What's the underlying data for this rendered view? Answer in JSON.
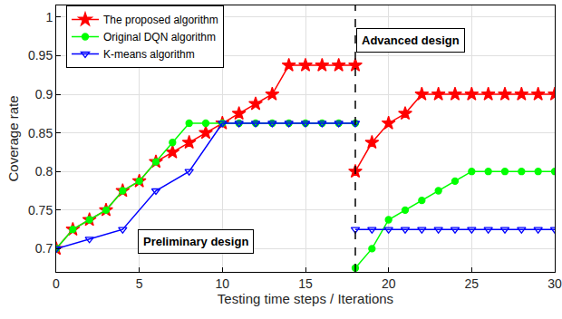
{
  "chart_data": {
    "type": "line",
    "x_label": "Testing time steps / Iterations",
    "y_label": "Coverage rate",
    "xlim": [
      0,
      30
    ],
    "xticks": [
      0,
      5,
      10,
      15,
      20,
      25,
      30
    ],
    "ylim": [
      0.67,
      1.015
    ],
    "yticks": [
      0.7,
      0.75,
      0.8,
      0.85,
      0.9,
      0.95,
      1
    ],
    "grid": true,
    "legend": "top-left",
    "annotations": [
      "Preliminary design",
      "Advanced design"
    ],
    "vertical_line": {
      "x": 18,
      "line_style": "dashed"
    },
    "series": [
      {
        "name": "The proposed algorithm",
        "color": "#ff0000",
        "marker": "star",
        "x": [
          0,
          1,
          2,
          3,
          4,
          5,
          6,
          7,
          8,
          9,
          10,
          11,
          12,
          13,
          14,
          15,
          16,
          17,
          18,
          18,
          18,
          19,
          20,
          21,
          22,
          23,
          24,
          25,
          26,
          27,
          28,
          29,
          30
        ],
        "values": [
          0.7,
          0.725,
          0.7375,
          0.75,
          0.775,
          0.7875,
          0.8125,
          0.825,
          0.8375,
          0.85,
          0.8625,
          0.875,
          0.8875,
          0.9,
          0.9375,
          0.9375,
          0.9375,
          0.9375,
          0.9375,
          null,
          0.8,
          0.8375,
          0.8625,
          0.875,
          0.9,
          0.9,
          0.9,
          0.9,
          0.9,
          0.9,
          0.9,
          0.9,
          0.9
        ]
      },
      {
        "name": "Original DQN algorithm",
        "color": "#00ff00",
        "marker": "circle",
        "x": [
          0,
          1,
          2,
          3,
          4,
          5,
          6,
          7,
          8,
          9,
          10,
          11,
          12,
          13,
          14,
          15,
          16,
          17,
          18,
          18,
          18,
          19,
          20,
          21,
          22,
          23,
          24,
          25,
          26,
          27,
          28,
          29,
          30
        ],
        "values": [
          0.7,
          0.725,
          0.7375,
          0.75,
          0.775,
          0.7875,
          0.8125,
          0.8375,
          0.8625,
          0.8625,
          0.8625,
          0.8625,
          0.8625,
          0.8625,
          0.8625,
          0.8625,
          0.8625,
          0.8625,
          0.8625,
          null,
          0.675,
          0.7,
          0.7375,
          0.75,
          0.7625,
          0.775,
          0.7875,
          0.8,
          0.8,
          0.8,
          0.8,
          0.8,
          0.8
        ]
      },
      {
        "name": "K-means algorithm",
        "color": "#0000ff",
        "marker": "triangle-down-open",
        "x": [
          0,
          2,
          4,
          6,
          8,
          10,
          11,
          12,
          13,
          14,
          15,
          16,
          17,
          18,
          18,
          18,
          19,
          20,
          21,
          22,
          23,
          24,
          25,
          26,
          27,
          28,
          29,
          30
        ],
        "values": [
          0.7,
          0.7125,
          0.725,
          0.775,
          0.8,
          0.8625,
          0.8625,
          0.8625,
          0.8625,
          0.8625,
          0.8625,
          0.8625,
          0.8625,
          0.8625,
          null,
          0.725,
          0.725,
          0.725,
          0.725,
          0.725,
          0.725,
          0.725,
          0.725,
          0.725,
          0.725,
          0.725,
          0.725,
          0.725
        ]
      }
    ]
  }
}
